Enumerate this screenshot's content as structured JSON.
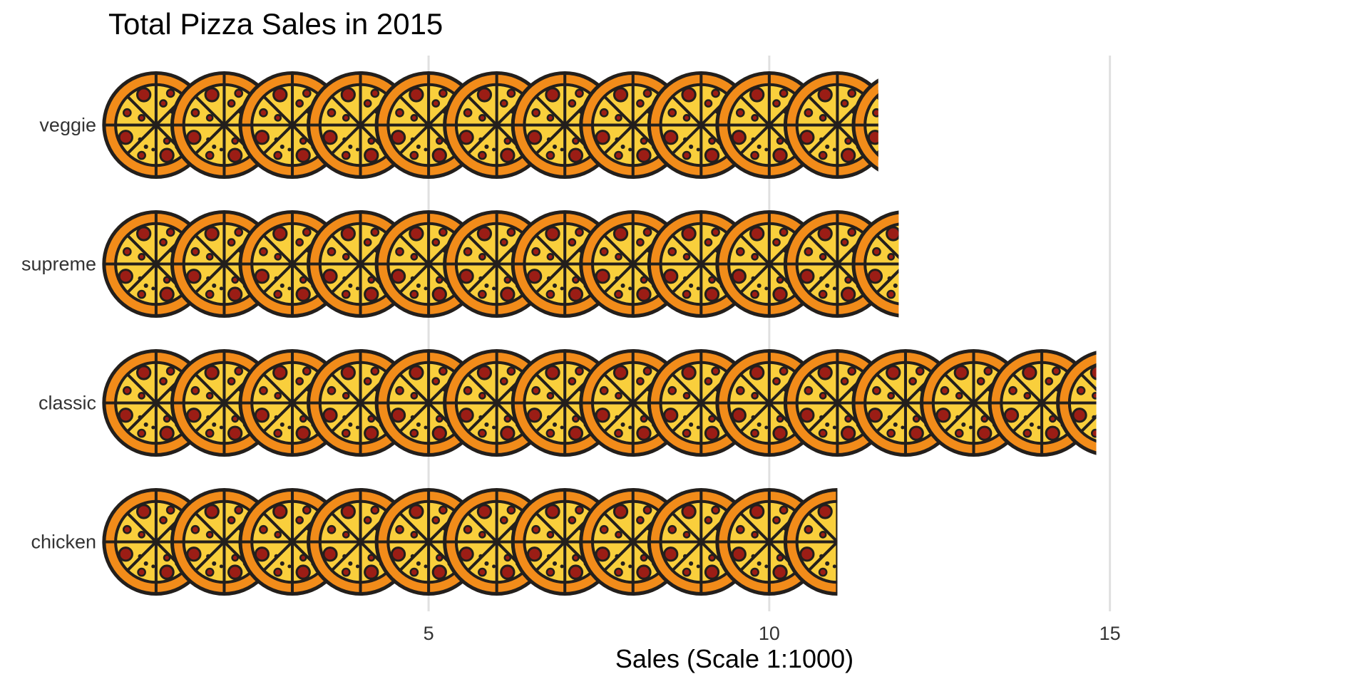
{
  "chart_data": {
    "type": "bar",
    "orientation": "horizontal",
    "title": "Total Pizza Sales in 2015",
    "xlabel": "Sales (Scale 1:1000)",
    "ylabel": "",
    "categories": [
      "veggie",
      "supreme",
      "classic",
      "chicken"
    ],
    "values": [
      11.6,
      11.9,
      14.8,
      11.0
    ],
    "xlim": [
      0.3,
      18.8
    ],
    "xticks": [
      5,
      10,
      15
    ],
    "grid": "vertical major",
    "legend": "none",
    "mark_icon": "pizza-icon"
  },
  "colors": {
    "crust": "#f28c1a",
    "cheese": "#f9cf3c",
    "pepperoni": "#9b1d15",
    "outline": "#231f1c",
    "gridline": "#e0e0e0",
    "text": "#333333"
  }
}
